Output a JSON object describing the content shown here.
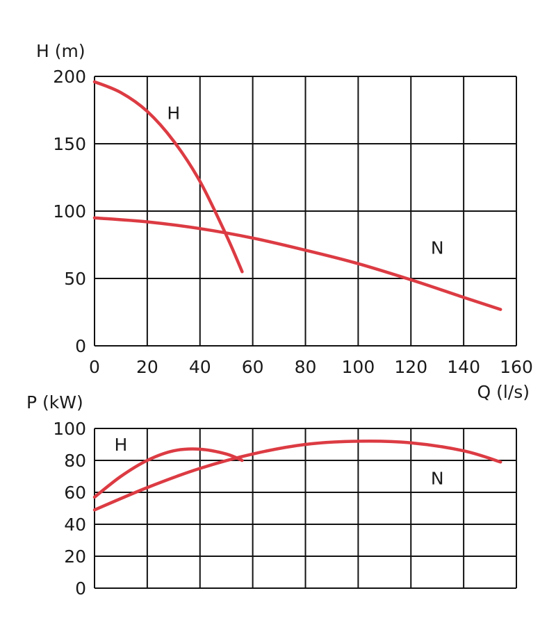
{
  "chart_data": [
    {
      "type": "line",
      "ylabel": "H (m)",
      "xlabel": "Q (l/s)",
      "xlim": [
        0,
        160
      ],
      "ylim": [
        0,
        200
      ],
      "xticks": [
        0,
        20,
        40,
        60,
        80,
        100,
        120,
        140,
        160
      ],
      "yticks": [
        0,
        50,
        100,
        150,
        200
      ],
      "xtick_labels": [
        "0",
        "20",
        "40",
        "60",
        "80",
        "100",
        "120",
        "140",
        "160"
      ],
      "ytick_labels": [
        "0",
        "50",
        "100",
        "150",
        "200"
      ],
      "grid": true,
      "series": [
        {
          "name": "H",
          "color": "#dc3b43",
          "x": [
            0,
            10,
            20,
            30,
            40,
            50,
            56
          ],
          "y": [
            196,
            188,
            174,
            152,
            122,
            82,
            55
          ]
        },
        {
          "name": "N",
          "color": "#dc3b43",
          "x": [
            0,
            20,
            40,
            60,
            80,
            100,
            120,
            140,
            154
          ],
          "y": [
            95,
            92,
            87,
            80,
            71,
            61,
            49,
            36,
            27
          ]
        }
      ],
      "annotations": [
        {
          "text": "H",
          "x": 30,
          "y": 173
        },
        {
          "text": "N",
          "x": 130,
          "y": 73
        }
      ]
    },
    {
      "type": "line",
      "ylabel": "P (kW)",
      "xlabel": "",
      "xlim": [
        0,
        160
      ],
      "ylim": [
        0,
        100
      ],
      "yticks": [
        0,
        20,
        40,
        60,
        80,
        100
      ],
      "ytick_labels": [
        "0",
        "20",
        "40",
        "60",
        "80",
        "100"
      ],
      "grid": true,
      "series": [
        {
          "name": "H",
          "color": "#dc3b43",
          "x": [
            0,
            10,
            20,
            30,
            40,
            50,
            56
          ],
          "y": [
            57,
            70,
            80,
            86,
            87,
            84,
            80
          ]
        },
        {
          "name": "N",
          "color": "#dc3b43",
          "x": [
            0,
            20,
            40,
            60,
            80,
            100,
            120,
            140,
            154
          ],
          "y": [
            49,
            63,
            75,
            84,
            90,
            92,
            91,
            86,
            79
          ]
        }
      ],
      "annotations": [
        {
          "text": "H",
          "x": 10,
          "y": 90
        },
        {
          "text": "N",
          "x": 130,
          "y": 69
        }
      ]
    }
  ]
}
